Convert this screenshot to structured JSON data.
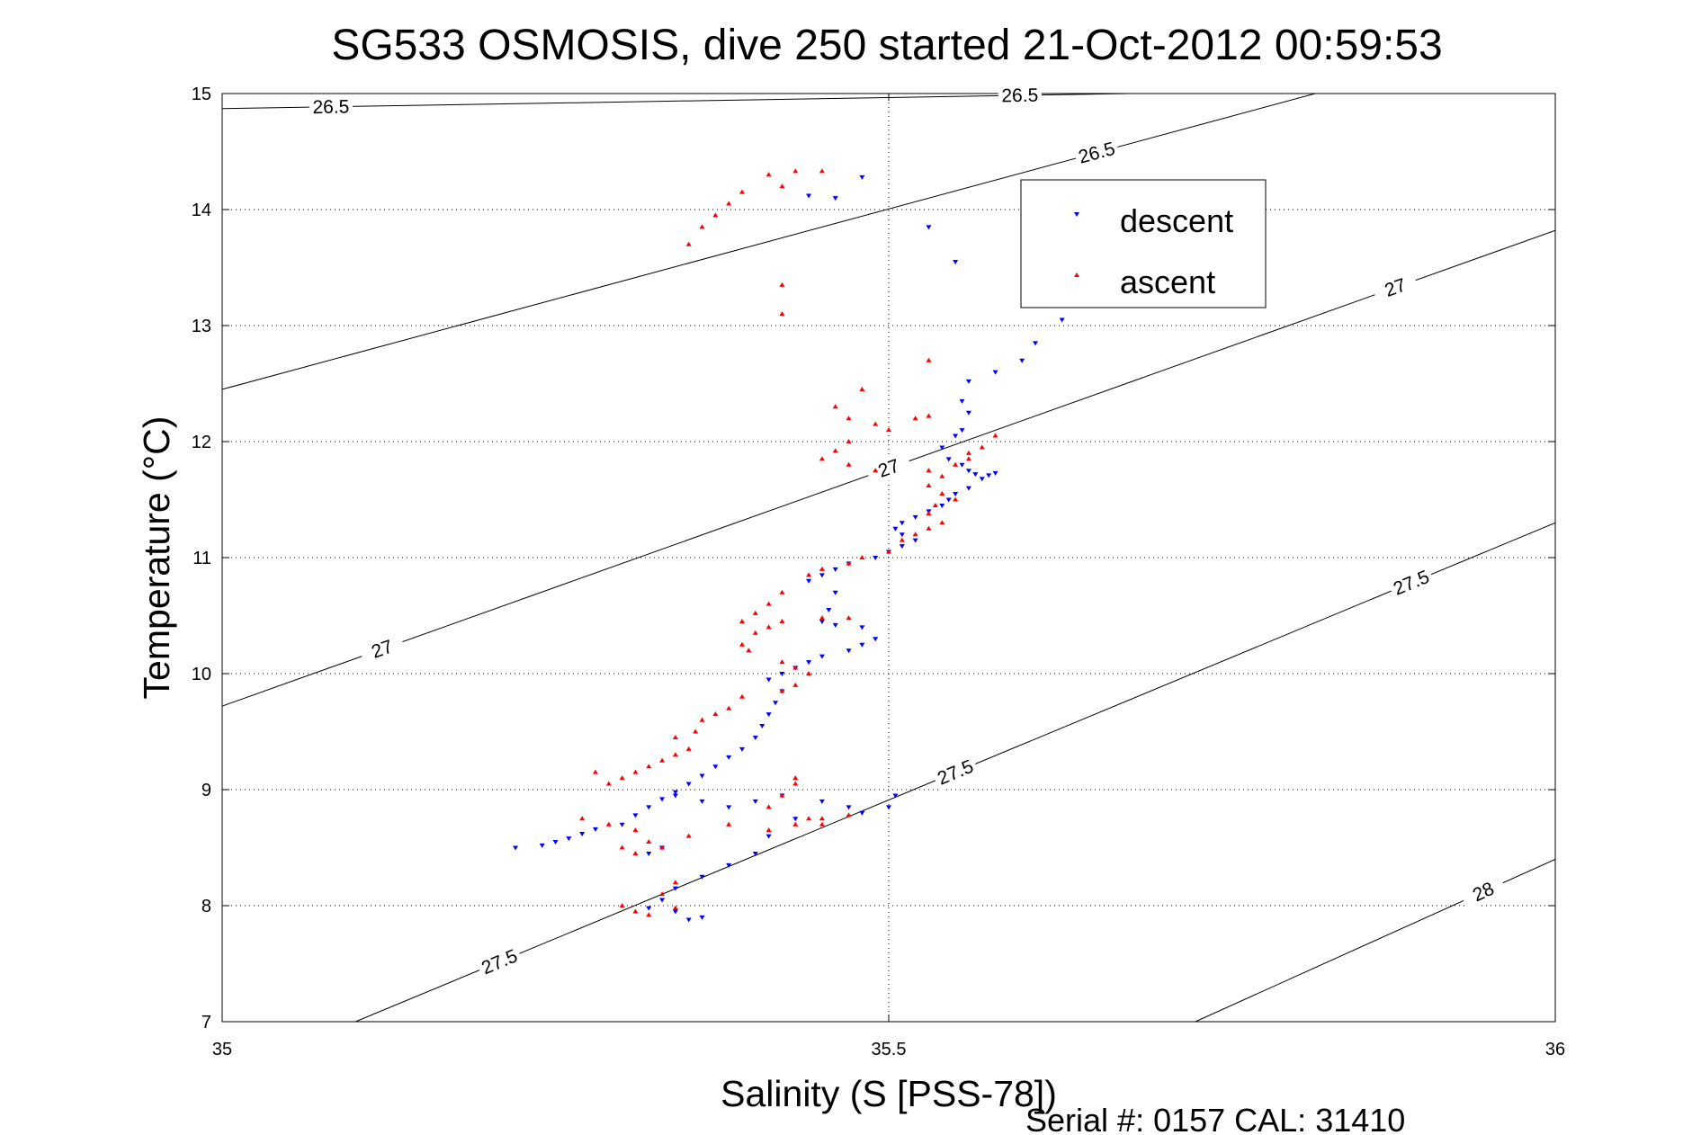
{
  "chart_data": {
    "type": "scatter",
    "title": "SG533 OSMOSIS, dive 250 started 21-Oct-2012 00:59:53",
    "xlabel": "Salinity (S [PSS-78])",
    "ylabel": "Temperature (°C)",
    "xlim": [
      35,
      36
    ],
    "ylim": [
      7,
      15
    ],
    "x_ticks": [
      "35",
      "35.5",
      "36"
    ],
    "y_ticks": [
      "7",
      "8",
      "9",
      "10",
      "11",
      "12",
      "13",
      "14",
      "15"
    ],
    "grid": "dotted",
    "legend_position": "top-right",
    "footer": "Serial #: 0157  CAL: 31410",
    "density_contours": [
      {
        "level": "26.5",
        "labels": [
          "26.5",
          "26.5"
        ],
        "points": [
          [
            35.0,
            14.87
          ],
          [
            35.68,
            15.0
          ]
        ]
      },
      {
        "level": "26.5",
        "labels": [
          "26.5"
        ],
        "points": [
          [
            35.0,
            12.45
          ],
          [
            35.82,
            15.0
          ]
        ]
      },
      {
        "level": "27",
        "labels": [
          "27",
          "27",
          "27"
        ],
        "points": [
          [
            35.0,
            9.72
          ],
          [
            36.0,
            13.82
          ]
        ]
      },
      {
        "level": "27.5",
        "labels": [
          "27.5",
          "27.5",
          "27.5"
        ],
        "points": [
          [
            35.1,
            7.0
          ],
          [
            36.0,
            11.3
          ]
        ]
      },
      {
        "level": "28",
        "labels": [
          "28"
        ],
        "points": [
          [
            35.73,
            7.0
          ],
          [
            36.0,
            8.4
          ]
        ]
      }
    ],
    "series": [
      {
        "name": "descent",
        "color": "#0000ff",
        "marker": "triangle-down",
        "points": [
          [
            35.48,
            14.28
          ],
          [
            35.53,
            13.85
          ],
          [
            35.55,
            13.55
          ],
          [
            35.63,
            13.05
          ],
          [
            35.61,
            12.85
          ],
          [
            35.6,
            12.7
          ],
          [
            35.58,
            12.6
          ],
          [
            35.56,
            12.52
          ],
          [
            35.555,
            12.35
          ],
          [
            35.56,
            12.25
          ],
          [
            35.555,
            12.1
          ],
          [
            35.55,
            12.05
          ],
          [
            35.54,
            11.95
          ],
          [
            35.545,
            11.85
          ],
          [
            35.555,
            11.8
          ],
          [
            35.56,
            11.75
          ],
          [
            35.565,
            11.72
          ],
          [
            35.575,
            11.71
          ],
          [
            35.58,
            11.73
          ],
          [
            35.57,
            11.68
          ],
          [
            35.56,
            11.6
          ],
          [
            35.55,
            11.55
          ],
          [
            35.545,
            11.5
          ],
          [
            35.54,
            11.45
          ],
          [
            35.53,
            11.4
          ],
          [
            35.52,
            11.35
          ],
          [
            35.51,
            11.3
          ],
          [
            35.505,
            11.25
          ],
          [
            35.51,
            11.2
          ],
          [
            35.52,
            11.15
          ],
          [
            35.51,
            11.1
          ],
          [
            35.5,
            11.05
          ],
          [
            35.49,
            11.0
          ],
          [
            35.47,
            10.95
          ],
          [
            35.46,
            10.9
          ],
          [
            35.45,
            10.85
          ],
          [
            35.44,
            10.8
          ],
          [
            35.46,
            10.7
          ],
          [
            35.455,
            10.55
          ],
          [
            35.45,
            10.45
          ],
          [
            35.46,
            10.42
          ],
          [
            35.48,
            10.4
          ],
          [
            35.49,
            10.3
          ],
          [
            35.48,
            10.25
          ],
          [
            35.47,
            10.2
          ],
          [
            35.45,
            10.15
          ],
          [
            35.44,
            10.1
          ],
          [
            35.43,
            10.05
          ],
          [
            35.42,
            10.0
          ],
          [
            35.41,
            9.95
          ],
          [
            35.42,
            9.85
          ],
          [
            35.415,
            9.75
          ],
          [
            35.41,
            9.65
          ],
          [
            35.405,
            9.55
          ],
          [
            35.4,
            9.45
          ],
          [
            35.39,
            9.35
          ],
          [
            35.38,
            9.28
          ],
          [
            35.37,
            9.2
          ],
          [
            35.36,
            9.12
          ],
          [
            35.35,
            9.05
          ],
          [
            35.34,
            8.98
          ],
          [
            35.33,
            8.92
          ],
          [
            35.32,
            8.85
          ],
          [
            35.31,
            8.78
          ],
          [
            35.3,
            8.7
          ],
          [
            35.28,
            8.66
          ],
          [
            35.27,
            8.62
          ],
          [
            35.26,
            8.58
          ],
          [
            35.25,
            8.55
          ],
          [
            35.24,
            8.52
          ],
          [
            35.22,
            8.5
          ],
          [
            35.34,
            8.95
          ],
          [
            35.36,
            8.9
          ],
          [
            35.38,
            8.85
          ],
          [
            35.4,
            8.9
          ],
          [
            35.42,
            8.95
          ],
          [
            35.45,
            8.9
          ],
          [
            35.47,
            8.85
          ],
          [
            35.48,
            8.8
          ],
          [
            35.5,
            8.85
          ],
          [
            35.505,
            8.95
          ],
          [
            35.43,
            8.75
          ],
          [
            35.41,
            8.6
          ],
          [
            35.4,
            8.45
          ],
          [
            35.38,
            8.35
          ],
          [
            35.36,
            8.25
          ],
          [
            35.34,
            8.15
          ],
          [
            35.33,
            8.05
          ],
          [
            35.32,
            7.98
          ],
          [
            35.34,
            7.95
          ],
          [
            35.36,
            7.9
          ],
          [
            35.35,
            7.88
          ],
          [
            35.33,
            8.5
          ],
          [
            35.32,
            8.45
          ],
          [
            35.44,
            14.12
          ],
          [
            35.46,
            14.1
          ]
        ]
      },
      {
        "name": "ascent",
        "color": "#ff0000",
        "marker": "triangle-up",
        "points": [
          [
            35.41,
            14.3
          ],
          [
            35.43,
            14.33
          ],
          [
            35.45,
            14.33
          ],
          [
            35.42,
            14.2
          ],
          [
            35.39,
            14.15
          ],
          [
            35.38,
            14.05
          ],
          [
            35.37,
            13.95
          ],
          [
            35.36,
            13.85
          ],
          [
            35.35,
            13.7
          ],
          [
            35.42,
            13.35
          ],
          [
            35.42,
            13.1
          ],
          [
            35.53,
            12.7
          ],
          [
            35.48,
            12.45
          ],
          [
            35.46,
            12.3
          ],
          [
            35.47,
            12.2
          ],
          [
            35.49,
            12.15
          ],
          [
            35.52,
            12.2
          ],
          [
            35.53,
            12.22
          ],
          [
            35.5,
            12.1
          ],
          [
            35.47,
            12.0
          ],
          [
            35.46,
            11.92
          ],
          [
            35.45,
            11.85
          ],
          [
            35.47,
            11.8
          ],
          [
            35.49,
            11.75
          ],
          [
            35.53,
            11.75
          ],
          [
            35.55,
            11.8
          ],
          [
            35.56,
            11.9
          ],
          [
            35.57,
            11.95
          ],
          [
            35.58,
            12.05
          ],
          [
            35.56,
            11.85
          ],
          [
            35.54,
            11.7
          ],
          [
            35.53,
            11.62
          ],
          [
            35.54,
            11.55
          ],
          [
            35.55,
            11.5
          ],
          [
            35.535,
            11.45
          ],
          [
            35.53,
            11.38
          ],
          [
            35.54,
            11.3
          ],
          [
            35.53,
            11.25
          ],
          [
            35.52,
            11.2
          ],
          [
            35.51,
            11.15
          ],
          [
            35.5,
            11.05
          ],
          [
            35.48,
            11.0
          ],
          [
            35.47,
            10.95
          ],
          [
            35.45,
            10.9
          ],
          [
            35.44,
            10.85
          ],
          [
            35.42,
            10.7
          ],
          [
            35.41,
            10.6
          ],
          [
            35.4,
            10.52
          ],
          [
            35.39,
            10.45
          ],
          [
            35.41,
            10.4
          ],
          [
            35.42,
            10.45
          ],
          [
            35.45,
            10.48
          ],
          [
            35.47,
            10.48
          ],
          [
            35.4,
            10.35
          ],
          [
            35.39,
            10.25
          ],
          [
            35.395,
            10.2
          ],
          [
            35.42,
            10.1
          ],
          [
            35.43,
            10.05
          ],
          [
            35.44,
            10.0
          ],
          [
            35.43,
            9.9
          ],
          [
            35.42,
            9.85
          ],
          [
            35.39,
            9.8
          ],
          [
            35.38,
            9.7
          ],
          [
            35.37,
            9.65
          ],
          [
            35.36,
            9.6
          ],
          [
            35.355,
            9.5
          ],
          [
            35.34,
            9.45
          ],
          [
            35.35,
            9.35
          ],
          [
            35.34,
            9.3
          ],
          [
            35.33,
            9.25
          ],
          [
            35.32,
            9.2
          ],
          [
            35.31,
            9.15
          ],
          [
            35.3,
            9.1
          ],
          [
            35.29,
            9.05
          ],
          [
            35.28,
            9.15
          ],
          [
            35.27,
            8.75
          ],
          [
            35.29,
            8.7
          ],
          [
            35.31,
            8.65
          ],
          [
            35.32,
            8.55
          ],
          [
            35.33,
            8.5
          ],
          [
            35.31,
            8.45
          ],
          [
            35.35,
            8.6
          ],
          [
            35.38,
            8.7
          ],
          [
            35.41,
            8.65
          ],
          [
            35.43,
            8.7
          ],
          [
            35.45,
            8.75
          ],
          [
            35.47,
            8.78
          ],
          [
            35.41,
            8.85
          ],
          [
            35.42,
            8.95
          ],
          [
            35.43,
            9.05
          ],
          [
            35.43,
            9.1
          ],
          [
            35.44,
            8.75
          ],
          [
            35.45,
            8.7
          ],
          [
            35.3,
            8.0
          ],
          [
            35.31,
            7.95
          ],
          [
            35.32,
            7.92
          ],
          [
            35.34,
            7.98
          ],
          [
            35.33,
            8.1
          ],
          [
            35.34,
            8.2
          ],
          [
            35.3,
            8.5
          ]
        ]
      }
    ]
  }
}
